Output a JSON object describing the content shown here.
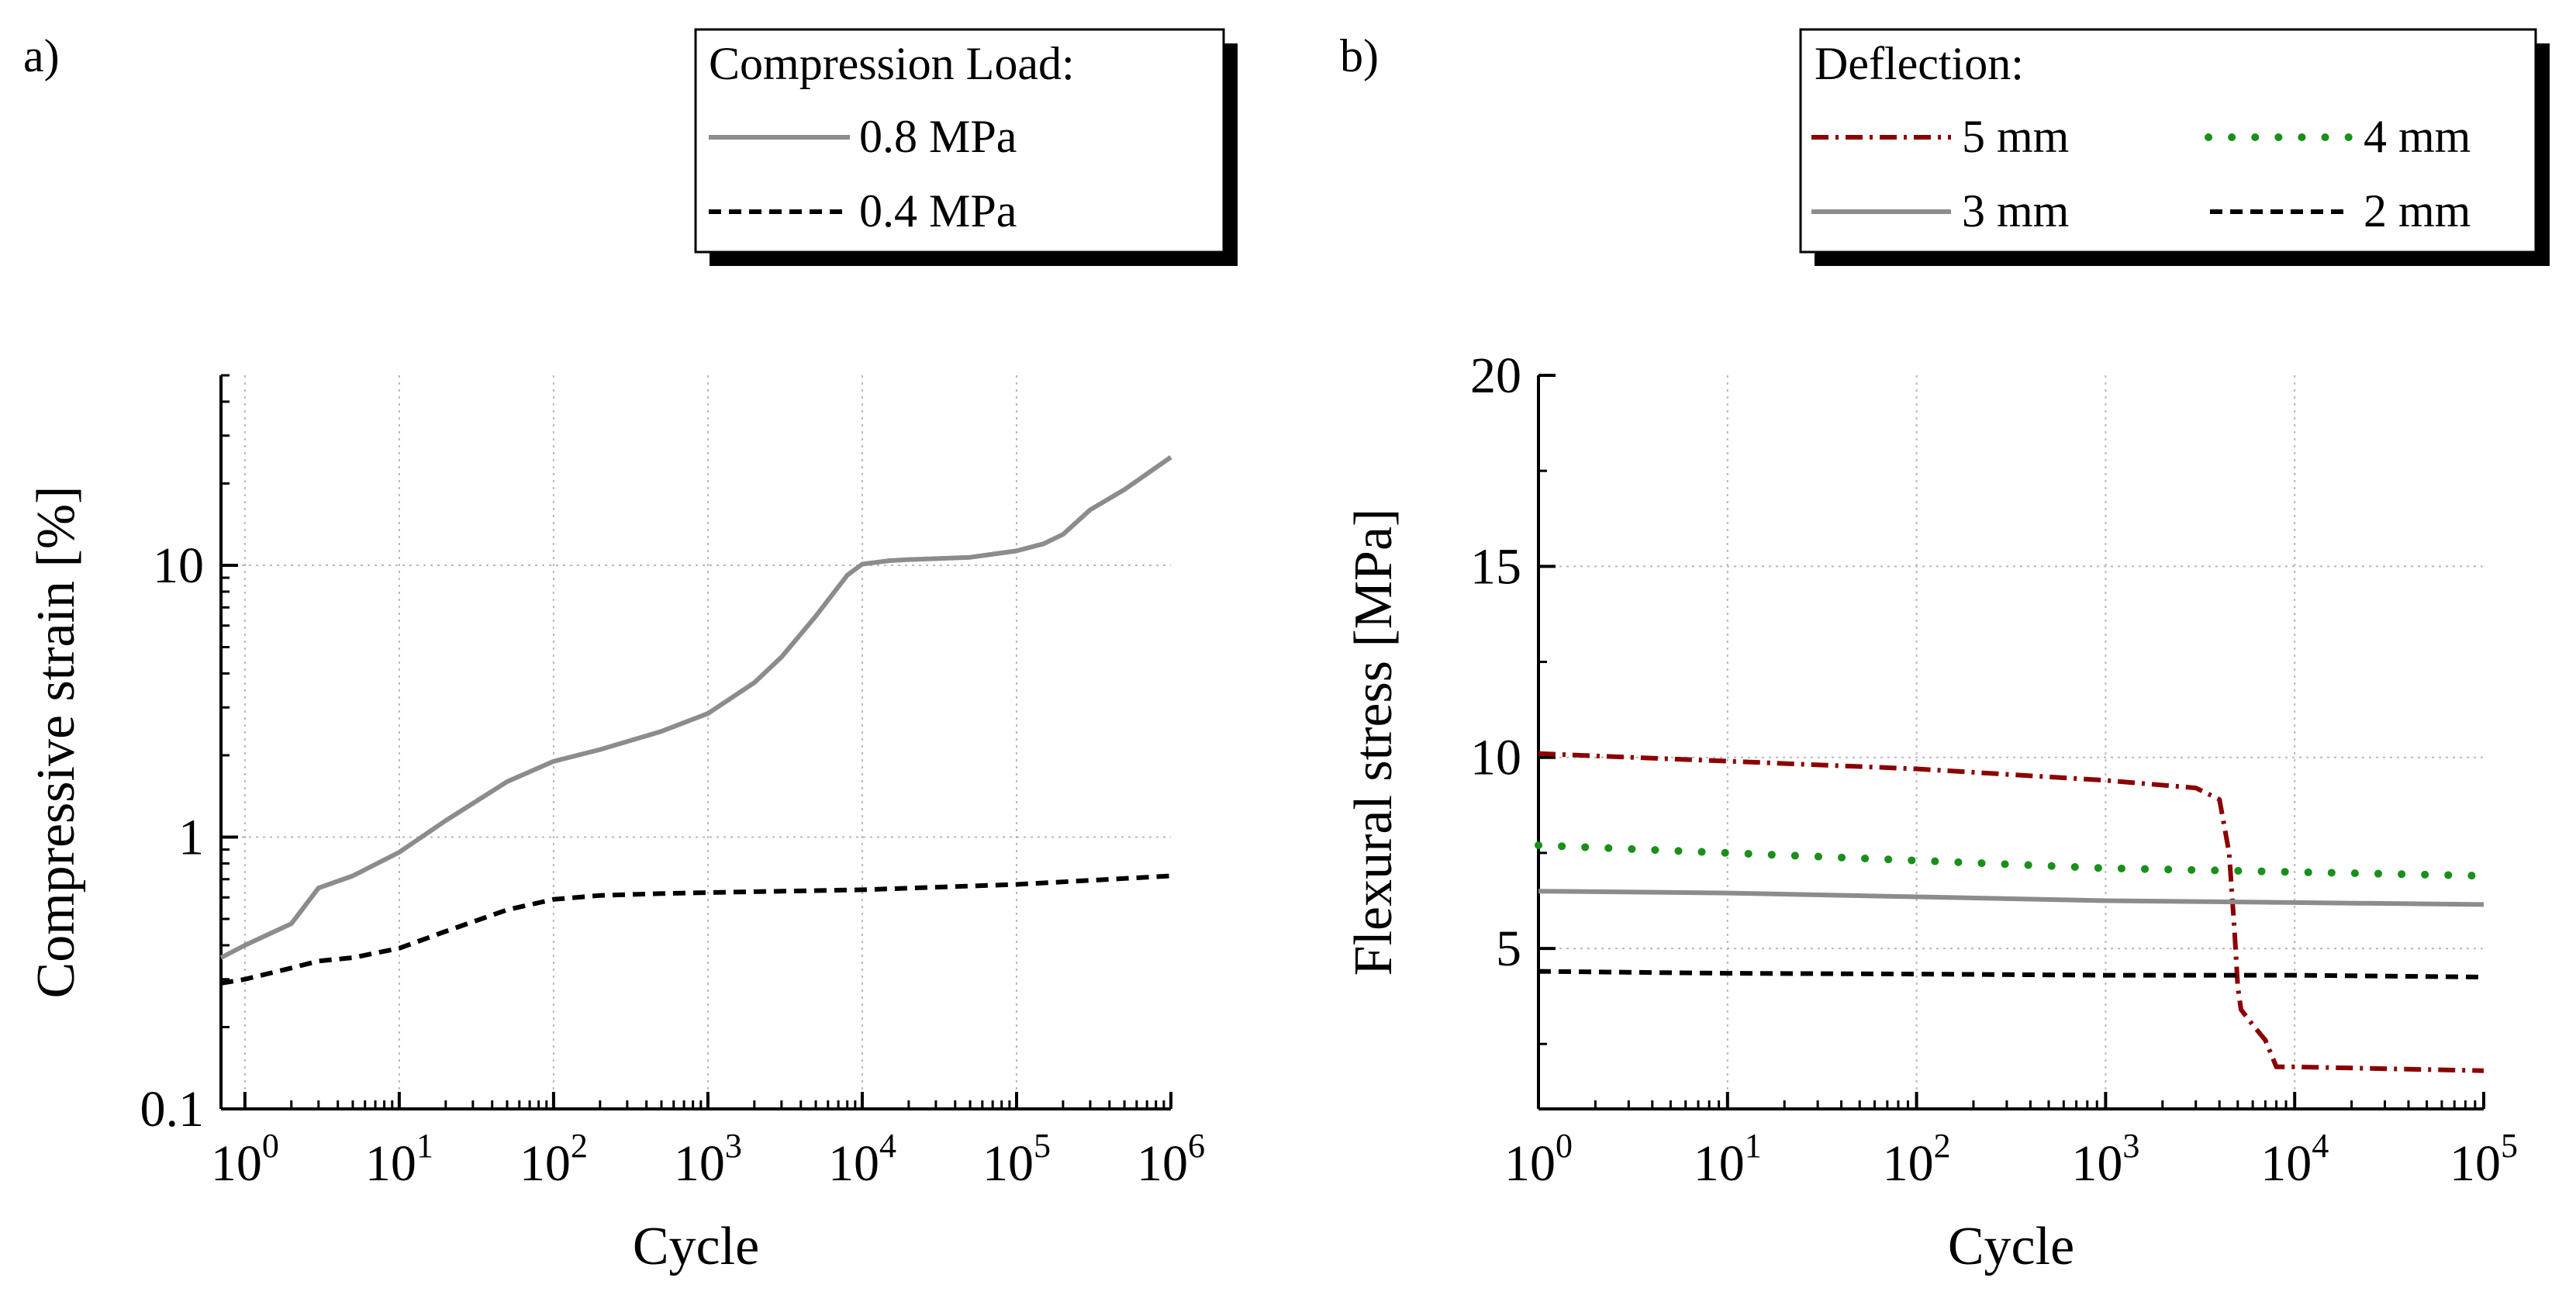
{
  "panels": {
    "a": {
      "label": "a)"
    },
    "b": {
      "label": "b)"
    }
  },
  "chart_data": [
    {
      "id": "a",
      "type": "line",
      "xscale": "log",
      "yscale": "log",
      "xlabel": "Cycle",
      "ylabel": "Compressive strain [%]",
      "xlim": [
        0.7,
        1000000
      ],
      "ylim": [
        0.1,
        50
      ],
      "grid": true,
      "xticks": [
        {
          "value": 1,
          "base": "10",
          "exp": "0"
        },
        {
          "value": 10,
          "base": "10",
          "exp": "1"
        },
        {
          "value": 100,
          "base": "10",
          "exp": "2"
        },
        {
          "value": 1000,
          "base": "10",
          "exp": "3"
        },
        {
          "value": 10000,
          "base": "10",
          "exp": "4"
        },
        {
          "value": 100000,
          "base": "10",
          "exp": "5"
        },
        {
          "value": 1000000,
          "base": "10",
          "exp": "6"
        }
      ],
      "yticks": [
        {
          "value": 0.1,
          "label": "0.1"
        },
        {
          "value": 1,
          "label": "1"
        },
        {
          "value": 10,
          "label": "10"
        }
      ],
      "legend": {
        "title": "Compression Load:",
        "placement": "top-right",
        "columns": 1,
        "entries": [
          "0.8 MPa",
          "0.4 MPa"
        ]
      },
      "series": [
        {
          "name": "0.8 MPa",
          "color": "#8c8c8c",
          "style": "solid",
          "x": [
            0.7,
            1,
            2,
            3,
            5,
            10,
            20,
            50,
            100,
            200,
            500,
            1000,
            2000,
            3000,
            5000,
            8000,
            10000,
            15000,
            20000,
            50000,
            100000,
            150000,
            200000,
            300000,
            500000,
            1000000
          ],
          "y": [
            0.36,
            0.4,
            0.48,
            0.65,
            0.72,
            0.88,
            1.15,
            1.6,
            1.9,
            2.1,
            2.45,
            2.85,
            3.7,
            4.6,
            6.5,
            9.2,
            10.1,
            10.4,
            10.5,
            10.7,
            11.3,
            12.0,
            13.0,
            16.0,
            19.0,
            25.0
          ]
        },
        {
          "name": "0.4 MPa",
          "color": "#000000",
          "style": "dashed",
          "x": [
            0.7,
            1,
            2,
            3,
            5,
            10,
            20,
            50,
            100,
            200,
            500,
            1000,
            10000,
            100000,
            1000000
          ],
          "y": [
            0.29,
            0.3,
            0.33,
            0.35,
            0.36,
            0.39,
            0.45,
            0.54,
            0.59,
            0.61,
            0.62,
            0.625,
            0.64,
            0.67,
            0.72
          ]
        }
      ]
    },
    {
      "id": "b",
      "type": "line",
      "xscale": "log",
      "yscale": "linear",
      "xlabel": "Cycle",
      "ylabel": "Flexural stress [MPa]",
      "xlim": [
        1,
        100000
      ],
      "ylim": [
        0.8,
        20
      ],
      "grid": true,
      "xticks": [
        {
          "value": 1,
          "base": "10",
          "exp": "0"
        },
        {
          "value": 10,
          "base": "10",
          "exp": "1"
        },
        {
          "value": 100,
          "base": "10",
          "exp": "2"
        },
        {
          "value": 1000,
          "base": "10",
          "exp": "3"
        },
        {
          "value": 10000,
          "base": "10",
          "exp": "4"
        },
        {
          "value": 100000,
          "base": "10",
          "exp": "5"
        }
      ],
      "yticks": [
        {
          "value": 5,
          "label": "5"
        },
        {
          "value": 10,
          "label": "10"
        },
        {
          "value": 15,
          "label": "15"
        },
        {
          "value": 20,
          "label": "20"
        }
      ],
      "legend": {
        "title": "Deflection:",
        "placement": "top-right",
        "columns": 2,
        "entries": [
          "5 mm",
          "4 mm",
          "3 mm",
          "2 mm"
        ]
      },
      "series": [
        {
          "name": "5 mm",
          "color": "#8b0000",
          "style": "dashdot",
          "x": [
            1,
            10,
            100,
            1000,
            3000,
            4000,
            4500,
            4800,
            5000,
            5200,
            6000,
            7000,
            8000,
            10000,
            100000
          ],
          "y": [
            10.1,
            9.9,
            9.7,
            9.4,
            9.2,
            8.9,
            7.5,
            5.5,
            4.0,
            3.4,
            3.0,
            2.6,
            1.9,
            1.9,
            1.8
          ]
        },
        {
          "name": "4 mm",
          "color": "#1a8f1a",
          "style": "dotted",
          "x": [
            1,
            10,
            100,
            1000,
            10000,
            100000
          ],
          "y": [
            7.7,
            7.5,
            7.3,
            7.1,
            7.0,
            6.9
          ]
        },
        {
          "name": "3 mm",
          "color": "#8c8c8c",
          "style": "solid",
          "x": [
            1,
            10,
            100,
            1000,
            10000,
            100000
          ],
          "y": [
            6.5,
            6.45,
            6.35,
            6.25,
            6.2,
            6.15
          ]
        },
        {
          "name": "2 mm",
          "color": "#000000",
          "style": "dashed",
          "x": [
            1,
            10,
            100,
            1000,
            10000,
            100000
          ],
          "y": [
            4.4,
            4.35,
            4.33,
            4.3,
            4.3,
            4.25
          ]
        }
      ]
    }
  ]
}
